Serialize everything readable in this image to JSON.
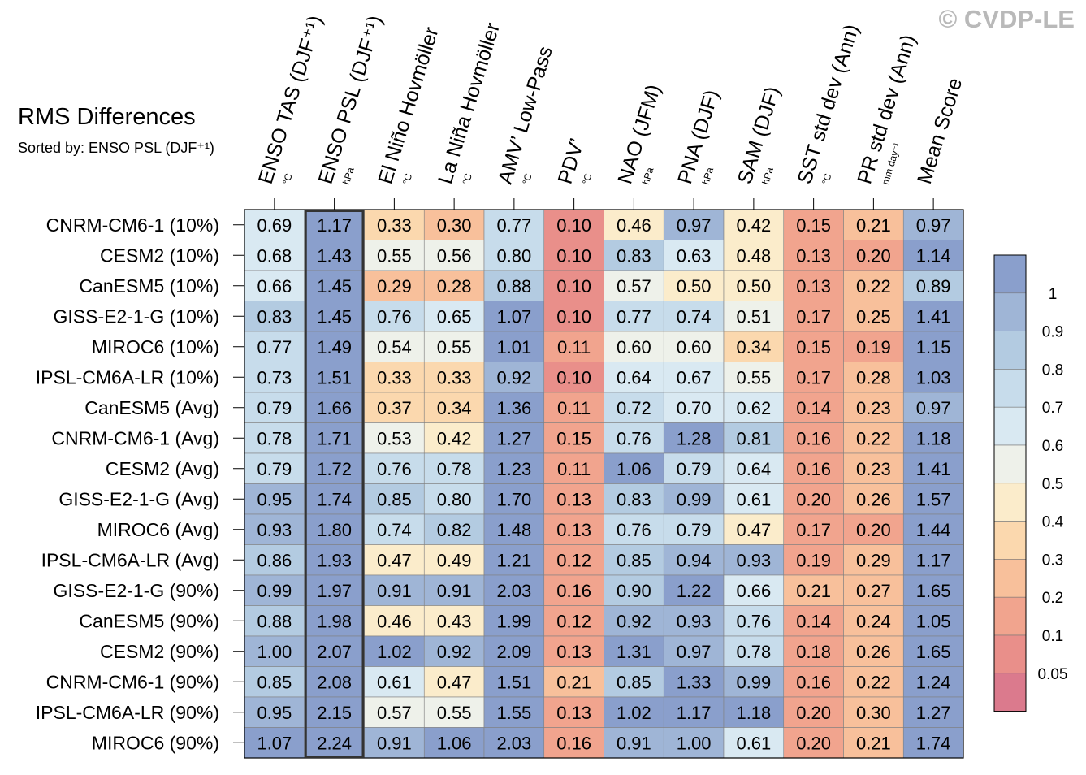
{
  "title": "RMS Differences",
  "subtitle": "Sorted by: ENSO PSL (DJF⁺¹)",
  "watermark": "© CVDP-LE",
  "chart_data": {
    "type": "heatmap",
    "columns": [
      {
        "name": "ENSO TAS (DJF⁺¹)",
        "unit": "°C"
      },
      {
        "name": "ENSO PSL (DJF⁺¹)",
        "unit": "hPa"
      },
      {
        "name": "El Niño Hovmöller",
        "unit": "°C"
      },
      {
        "name": "La Niña Hovmöller",
        "unit": "°C"
      },
      {
        "name": "AMV’ Low-Pass",
        "unit": "°C"
      },
      {
        "name": "PDV’",
        "unit": "°C"
      },
      {
        "name": "NAO (JFM)",
        "unit": "hPa"
      },
      {
        "name": "PNA (DJF)",
        "unit": "hPa"
      },
      {
        "name": "SAM (DJF)",
        "unit": "hPa"
      },
      {
        "name": "SST std dev (Ann)",
        "unit": "°C"
      },
      {
        "name": "PR std dev (Ann)",
        "unit": "mm day⁻¹"
      },
      {
        "name": "Mean Score",
        "unit": ""
      }
    ],
    "rows": [
      "CNRM-CM6-1 (10%)",
      "CESM2 (10%)",
      "CanESM5 (10%)",
      "GISS-E2-1-G (10%)",
      "MIROC6 (10%)",
      "IPSL-CM6A-LR (10%)",
      "CanESM5 (Avg)",
      "CNRM-CM6-1 (Avg)",
      "CESM2 (Avg)",
      "GISS-E2-1-G (Avg)",
      "MIROC6 (Avg)",
      "IPSL-CM6A-LR (Avg)",
      "GISS-E2-1-G (90%)",
      "CanESM5 (90%)",
      "CESM2 (90%)",
      "CNRM-CM6-1 (90%)",
      "IPSL-CM6A-LR (90%)",
      "MIROC6 (90%)"
    ],
    "values": [
      [
        0.69,
        1.17,
        0.33,
        0.3,
        0.77,
        0.1,
        0.46,
        0.97,
        0.42,
        0.15,
        0.21,
        0.97
      ],
      [
        0.68,
        1.43,
        0.55,
        0.56,
        0.8,
        0.1,
        0.83,
        0.63,
        0.48,
        0.13,
        0.2,
        1.14
      ],
      [
        0.66,
        1.45,
        0.29,
        0.28,
        0.88,
        0.1,
        0.57,
        0.5,
        0.5,
        0.13,
        0.22,
        0.89
      ],
      [
        0.83,
        1.45,
        0.76,
        0.65,
        1.07,
        0.1,
        0.77,
        0.74,
        0.51,
        0.17,
        0.25,
        1.41
      ],
      [
        0.77,
        1.49,
        0.54,
        0.55,
        1.01,
        0.11,
        0.6,
        0.6,
        0.34,
        0.15,
        0.19,
        1.15
      ],
      [
        0.73,
        1.51,
        0.33,
        0.33,
        0.92,
        0.1,
        0.64,
        0.67,
        0.55,
        0.17,
        0.28,
        1.03
      ],
      [
        0.79,
        1.66,
        0.37,
        0.34,
        1.36,
        0.11,
        0.72,
        0.7,
        0.62,
        0.14,
        0.23,
        0.97
      ],
      [
        0.78,
        1.71,
        0.53,
        0.42,
        1.27,
        0.15,
        0.76,
        1.28,
        0.81,
        0.16,
        0.22,
        1.18
      ],
      [
        0.79,
        1.72,
        0.76,
        0.78,
        1.23,
        0.11,
        1.06,
        0.79,
        0.64,
        0.16,
        0.23,
        1.41
      ],
      [
        0.95,
        1.74,
        0.85,
        0.8,
        1.7,
        0.13,
        0.83,
        0.99,
        0.61,
        0.2,
        0.26,
        1.57
      ],
      [
        0.93,
        1.8,
        0.74,
        0.82,
        1.48,
        0.13,
        0.76,
        0.79,
        0.47,
        0.17,
        0.2,
        1.44
      ],
      [
        0.86,
        1.93,
        0.47,
        0.49,
        1.21,
        0.12,
        0.85,
        0.94,
        0.93,
        0.19,
        0.29,
        1.17
      ],
      [
        0.99,
        1.97,
        0.91,
        0.91,
        2.03,
        0.16,
        0.9,
        1.22,
        0.66,
        0.21,
        0.27,
        1.65
      ],
      [
        0.88,
        1.98,
        0.46,
        0.43,
        1.99,
        0.12,
        0.92,
        0.93,
        0.76,
        0.14,
        0.24,
        1.05
      ],
      [
        1.0,
        2.07,
        1.02,
        0.92,
        2.09,
        0.13,
        1.31,
        0.97,
        0.78,
        0.18,
        0.26,
        1.65
      ],
      [
        0.85,
        2.08,
        0.61,
        0.47,
        1.51,
        0.21,
        0.85,
        1.33,
        0.99,
        0.16,
        0.22,
        1.24
      ],
      [
        0.95,
        2.15,
        0.57,
        0.55,
        1.55,
        0.13,
        1.02,
        1.17,
        1.18,
        0.2,
        0.3,
        1.27
      ],
      [
        1.07,
        2.24,
        0.91,
        1.06,
        2.03,
        0.16,
        0.91,
        1.0,
        0.61,
        0.2,
        0.21,
        1.74
      ]
    ],
    "highlighted_column": "ENSO PSL (DJF⁺¹)",
    "colorbar": {
      "labels": [
        "1",
        "0.9",
        "0.8",
        "0.7",
        "0.6",
        "0.5",
        "0.4",
        "0.3",
        "0.2",
        "0.1",
        "0.05"
      ],
      "colors": [
        "#8a9fcc",
        "#9fb5d6",
        "#b3cbe1",
        "#c7dceb",
        "#d9e9f2",
        "#eef1ea",
        "#fbeccb",
        "#fbd8ae",
        "#f8c09b",
        "#f1a48e",
        "#e98f8a",
        "#db7a8d"
      ]
    }
  }
}
